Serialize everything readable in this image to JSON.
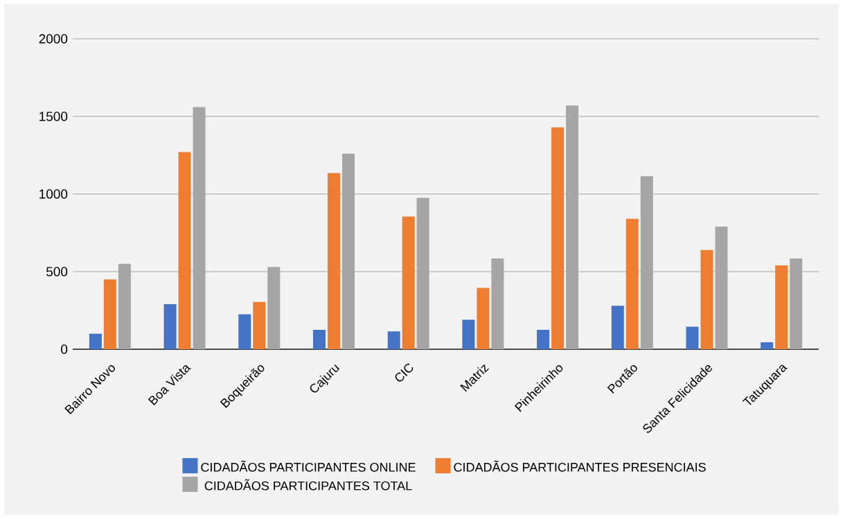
{
  "chart_data": {
    "type": "bar",
    "categories": [
      "Bairro Novo",
      "Boa Vista",
      "Boqueirão",
      "Cajuru",
      "CIC",
      "Matriz",
      "Pinheirinho",
      "Portão",
      "Santa Felicidade",
      "Tatuquara"
    ],
    "series": [
      {
        "name": "CIDADÃOS PARTICIPANTES ONLINE",
        "color": "#4472c4",
        "values": [
          100,
          290,
          225,
          125,
          115,
          190,
          125,
          280,
          145,
          45
        ]
      },
      {
        "name": "CIDADÃOS PARTICIPANTES PRESENCIAIS",
        "color": "#ed7d31",
        "values": [
          450,
          1270,
          305,
          1135,
          855,
          395,
          1430,
          840,
          640,
          540
        ]
      },
      {
        "name": "CIDADÃOS PARTICIPANTES TOTAL",
        "color": "#a5a5a5",
        "values": [
          550,
          1560,
          530,
          1260,
          975,
          585,
          1570,
          1115,
          790,
          585
        ]
      }
    ],
    "ylim": [
      0,
      2000
    ],
    "yticks": [
      0,
      500,
      1000,
      1500,
      2000
    ],
    "grid": "y",
    "legend": "bottom"
  }
}
